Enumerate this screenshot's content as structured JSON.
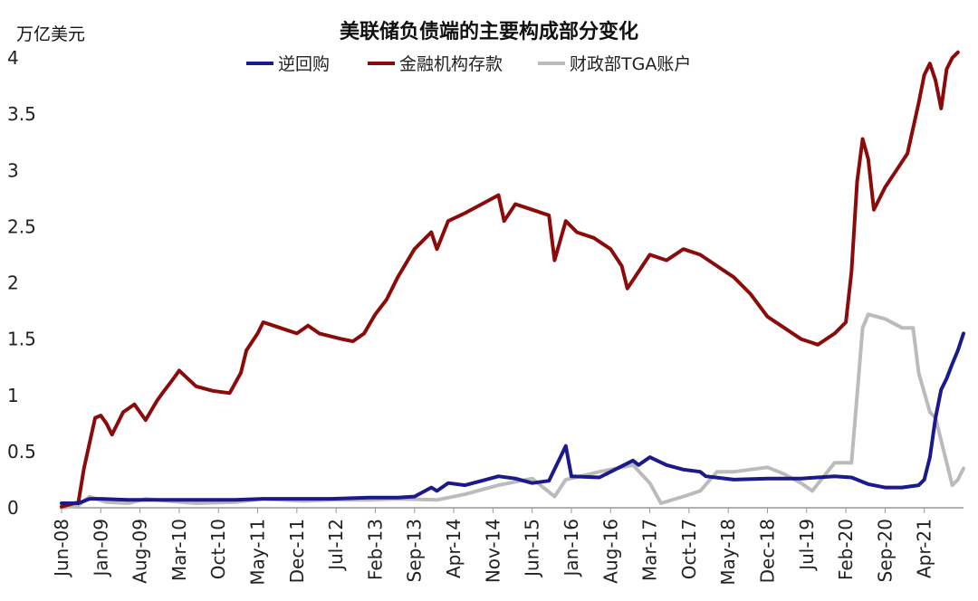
{
  "chart_data": {
    "type": "line",
    "title": "美联储负债端的主要构成部分变化",
    "ylabel": "万亿美元",
    "ylim": [
      0,
      4
    ],
    "yticks": [
      "0",
      "0.5",
      "1",
      "1.5",
      "2",
      "2.5",
      "3",
      "3.5",
      "4"
    ],
    "xlim": [
      "2008-06",
      "2021-11"
    ],
    "xticks": [
      "Jun-08",
      "Jan-09",
      "Aug-09",
      "Mar-10",
      "Oct-10",
      "May-11",
      "Dec-11",
      "Jul-12",
      "Feb-13",
      "Sep-13",
      "Apr-14",
      "Nov-14",
      "Jun-15",
      "Jan-16",
      "Aug-16",
      "Mar-17",
      "Oct-17",
      "May-18",
      "Dec-18",
      "Jul-19",
      "Feb-20",
      "Sep-20",
      "Apr-21"
    ],
    "grid": false,
    "legend_position": "top-center",
    "series": [
      {
        "name": "逆回购",
        "color": "#1a1a8c",
        "points": [
          [
            "2008-06",
            0.04
          ],
          [
            "2008-09",
            0.04
          ],
          [
            "2008-11",
            0.08
          ],
          [
            "2009-01",
            0.08
          ],
          [
            "2009-06",
            0.07
          ],
          [
            "2010-01",
            0.07
          ],
          [
            "2010-06",
            0.07
          ],
          [
            "2011-01",
            0.07
          ],
          [
            "2011-06",
            0.08
          ],
          [
            "2012-01",
            0.08
          ],
          [
            "2012-06",
            0.08
          ],
          [
            "2013-01",
            0.09
          ],
          [
            "2013-06",
            0.09
          ],
          [
            "2013-09",
            0.1
          ],
          [
            "2013-12",
            0.18
          ],
          [
            "2014-01",
            0.15
          ],
          [
            "2014-03",
            0.22
          ],
          [
            "2014-06",
            0.2
          ],
          [
            "2014-09",
            0.24
          ],
          [
            "2014-12",
            0.28
          ],
          [
            "2015-03",
            0.26
          ],
          [
            "2015-06",
            0.22
          ],
          [
            "2015-09",
            0.24
          ],
          [
            "2015-12",
            0.55
          ],
          [
            "2016-01",
            0.28
          ],
          [
            "2016-06",
            0.27
          ],
          [
            "2016-12",
            0.42
          ],
          [
            "2017-01",
            0.38
          ],
          [
            "2017-03",
            0.45
          ],
          [
            "2017-06",
            0.38
          ],
          [
            "2017-09",
            0.34
          ],
          [
            "2017-12",
            0.32
          ],
          [
            "2018-01",
            0.28
          ],
          [
            "2018-06",
            0.25
          ],
          [
            "2018-12",
            0.26
          ],
          [
            "2019-06",
            0.26
          ],
          [
            "2019-12",
            0.28
          ],
          [
            "2020-03",
            0.27
          ],
          [
            "2020-06",
            0.21
          ],
          [
            "2020-09",
            0.18
          ],
          [
            "2020-12",
            0.18
          ],
          [
            "2021-03",
            0.2
          ],
          [
            "2021-04",
            0.25
          ],
          [
            "2021-05",
            0.45
          ],
          [
            "2021-06",
            0.8
          ],
          [
            "2021-07",
            1.05
          ],
          [
            "2021-08",
            1.15
          ],
          [
            "2021-09",
            1.28
          ],
          [
            "2021-10",
            1.4
          ],
          [
            "2021-11",
            1.55
          ]
        ]
      },
      {
        "name": "金融机构存款",
        "color": "#8b0a0a",
        "points": [
          [
            "2008-06",
            0.01
          ],
          [
            "2008-09",
            0.05
          ],
          [
            "2008-10",
            0.35
          ],
          [
            "2008-12",
            0.8
          ],
          [
            "2009-01",
            0.82
          ],
          [
            "2009-02",
            0.75
          ],
          [
            "2009-03",
            0.65
          ],
          [
            "2009-05",
            0.85
          ],
          [
            "2009-07",
            0.92
          ],
          [
            "2009-09",
            0.78
          ],
          [
            "2009-11",
            0.95
          ],
          [
            "2009-12",
            1.02
          ],
          [
            "2010-02",
            1.15
          ],
          [
            "2010-03",
            1.22
          ],
          [
            "2010-06",
            1.08
          ],
          [
            "2010-09",
            1.04
          ],
          [
            "2010-12",
            1.02
          ],
          [
            "2011-02",
            1.2
          ],
          [
            "2011-03",
            1.4
          ],
          [
            "2011-05",
            1.55
          ],
          [
            "2011-06",
            1.65
          ],
          [
            "2011-09",
            1.6
          ],
          [
            "2011-12",
            1.55
          ],
          [
            "2012-02",
            1.62
          ],
          [
            "2012-04",
            1.55
          ],
          [
            "2012-08",
            1.5
          ],
          [
            "2012-10",
            1.48
          ],
          [
            "2012-12",
            1.55
          ],
          [
            "2013-02",
            1.72
          ],
          [
            "2013-04",
            1.85
          ],
          [
            "2013-06",
            2.05
          ],
          [
            "2013-09",
            2.3
          ],
          [
            "2013-12",
            2.45
          ],
          [
            "2014-01",
            2.3
          ],
          [
            "2014-03",
            2.55
          ],
          [
            "2014-06",
            2.62
          ],
          [
            "2014-09",
            2.7
          ],
          [
            "2014-12",
            2.78
          ],
          [
            "2015-01",
            2.55
          ],
          [
            "2015-03",
            2.7
          ],
          [
            "2015-06",
            2.65
          ],
          [
            "2015-09",
            2.6
          ],
          [
            "2015-10",
            2.2
          ],
          [
            "2015-12",
            2.55
          ],
          [
            "2016-02",
            2.45
          ],
          [
            "2016-05",
            2.4
          ],
          [
            "2016-08",
            2.3
          ],
          [
            "2016-10",
            2.15
          ],
          [
            "2016-11",
            1.95
          ],
          [
            "2017-01",
            2.1
          ],
          [
            "2017-03",
            2.25
          ],
          [
            "2017-06",
            2.2
          ],
          [
            "2017-09",
            2.3
          ],
          [
            "2017-12",
            2.25
          ],
          [
            "2018-03",
            2.15
          ],
          [
            "2018-06",
            2.05
          ],
          [
            "2018-09",
            1.9
          ],
          [
            "2018-12",
            1.7
          ],
          [
            "2019-03",
            1.6
          ],
          [
            "2019-06",
            1.5
          ],
          [
            "2019-09",
            1.45
          ],
          [
            "2019-12",
            1.55
          ],
          [
            "2020-02",
            1.65
          ],
          [
            "2020-03",
            2.1
          ],
          [
            "2020-04",
            2.9
          ],
          [
            "2020-05",
            3.28
          ],
          [
            "2020-06",
            3.1
          ],
          [
            "2020-07",
            2.65
          ],
          [
            "2020-09",
            2.85
          ],
          [
            "2020-11",
            3.0
          ],
          [
            "2021-01",
            3.15
          ],
          [
            "2021-03",
            3.6
          ],
          [
            "2021-04",
            3.85
          ],
          [
            "2021-05",
            3.95
          ],
          [
            "2021-06",
            3.8
          ],
          [
            "2021-07",
            3.55
          ],
          [
            "2021-08",
            3.9
          ],
          [
            "2021-09",
            4.0
          ],
          [
            "2021-10",
            4.05
          ]
        ]
      },
      {
        "name": "财政部TGA账户",
        "color": "#bbbbbb",
        "points": [
          [
            "2008-06",
            0.0
          ],
          [
            "2008-09",
            0.02
          ],
          [
            "2008-11",
            0.1
          ],
          [
            "2009-02",
            0.05
          ],
          [
            "2009-06",
            0.04
          ],
          [
            "2009-09",
            0.08
          ],
          [
            "2010-01",
            0.06
          ],
          [
            "2010-06",
            0.04
          ],
          [
            "2011-01",
            0.05
          ],
          [
            "2011-06",
            0.08
          ],
          [
            "2012-01",
            0.06
          ],
          [
            "2012-06",
            0.07
          ],
          [
            "2013-01",
            0.07
          ],
          [
            "2013-06",
            0.08
          ],
          [
            "2014-01",
            0.07
          ],
          [
            "2014-06",
            0.12
          ],
          [
            "2014-12",
            0.2
          ],
          [
            "2015-06",
            0.26
          ],
          [
            "2015-10",
            0.1
          ],
          [
            "2015-12",
            0.25
          ],
          [
            "2016-06",
            0.32
          ],
          [
            "2016-12",
            0.38
          ],
          [
            "2017-03",
            0.22
          ],
          [
            "2017-05",
            0.04
          ],
          [
            "2017-09",
            0.1
          ],
          [
            "2017-12",
            0.15
          ],
          [
            "2018-03",
            0.32
          ],
          [
            "2018-06",
            0.32
          ],
          [
            "2018-12",
            0.36
          ],
          [
            "2019-03",
            0.3
          ],
          [
            "2019-06",
            0.22
          ],
          [
            "2019-08",
            0.15
          ],
          [
            "2019-12",
            0.4
          ],
          [
            "2020-03",
            0.4
          ],
          [
            "2020-04",
            1.0
          ],
          [
            "2020-05",
            1.6
          ],
          [
            "2020-06",
            1.72
          ],
          [
            "2020-09",
            1.68
          ],
          [
            "2020-12",
            1.6
          ],
          [
            "2021-02",
            1.6
          ],
          [
            "2021-03",
            1.2
          ],
          [
            "2021-05",
            0.85
          ],
          [
            "2021-06",
            0.8
          ],
          [
            "2021-08",
            0.4
          ],
          [
            "2021-09",
            0.2
          ],
          [
            "2021-10",
            0.25
          ],
          [
            "2021-11",
            0.35
          ]
        ]
      }
    ]
  }
}
